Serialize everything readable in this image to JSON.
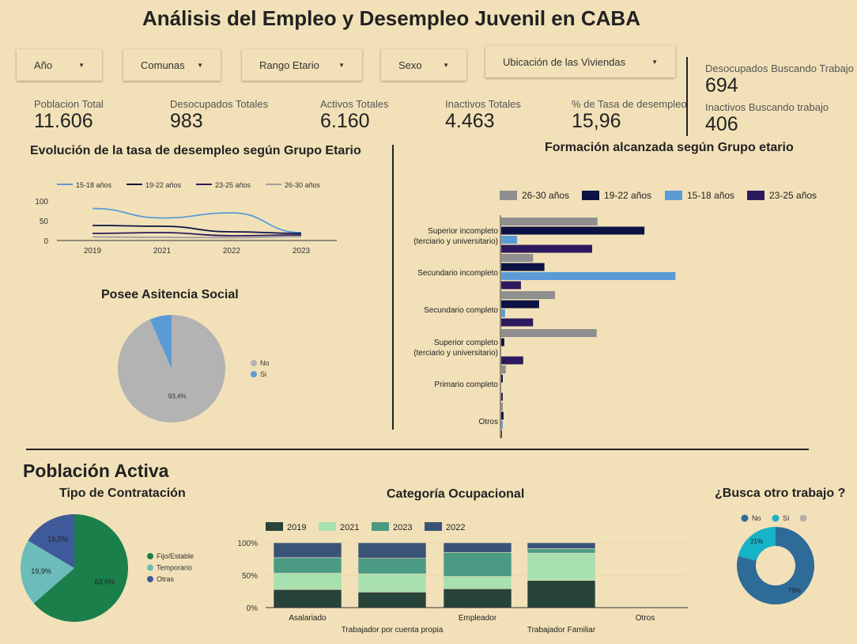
{
  "title": "Análisis del Empleo y Desempleo Juvenil en CABA",
  "filters": [
    {
      "label": "Año"
    },
    {
      "label": "Comunas"
    },
    {
      "label": "Rango Etario"
    },
    {
      "label": "Sexo"
    },
    {
      "label": "Ubicación de las Viviendas"
    }
  ],
  "kpis": {
    "poblacion_total": {
      "label": "Poblacion Total",
      "value": "11.606"
    },
    "desocupados_totales": {
      "label": "Desocupados Totales",
      "value": "983"
    },
    "activos_totales": {
      "label": "Activos Totales",
      "value": "6.160"
    },
    "inactivos_totales": {
      "label": "Inactivos Totales",
      "value": "4.463"
    },
    "tasa_desempleo": {
      "label": "% de Tasa de desempleo",
      "value": "15,96"
    },
    "desocupados_buscando": {
      "label": "Desocupados Buscando Trabajo",
      "value": "694"
    },
    "inactivos_buscando": {
      "label": "Inactivos Buscando trabajo",
      "value": "406"
    }
  },
  "poblacion_activa_heading": "Población Activa",
  "colors": {
    "background": "#f2e1b8",
    "navy": "#0c1244",
    "light_blue": "#5b9bd5",
    "purple": "#2d1a5e",
    "gray": "#8f8f8f"
  },
  "chart_data": [
    {
      "id": "evolucion",
      "type": "line",
      "title": "Evolución de la tasa de desempleo según Grupo Etario",
      "x": [
        "2019",
        "2021",
        "2022",
        "2023"
      ],
      "ylim": [
        0,
        100
      ],
      "yticks": [
        "100",
        "50",
        "0"
      ],
      "legend_position": "top",
      "series": [
        {
          "name": "15-18 años",
          "color": "#5b9bd5",
          "values": [
            81,
            57,
            70,
            20
          ]
        },
        {
          "name": "19-22 años",
          "color": "#0c1244",
          "values": [
            38,
            36,
            22,
            18
          ]
        },
        {
          "name": "23-25 años",
          "color": "#2d1a5e",
          "values": [
            18,
            20,
            12,
            14
          ]
        },
        {
          "name": "26-30 años",
          "color": "#9e9e9e",
          "values": [
            9,
            8,
            7,
            10
          ]
        }
      ]
    },
    {
      "id": "formacion",
      "type": "bar",
      "orientation": "horizontal",
      "title": "Formación alcanzada según Grupo etario",
      "legend_position": "top",
      "categories": [
        [
          "Superior incompleto",
          "(terciario y universitario)"
        ],
        [
          "Secundario incompleto"
        ],
        [
          "Secundario completo"
        ],
        [
          "Superior completo",
          "(terciario y universitario)"
        ],
        [
          "Primario completo"
        ],
        [
          "Otros"
        ]
      ],
      "series": [
        {
          "name": "26-30 años",
          "color": "#8f8f8f",
          "values": [
            127,
            42,
            71,
            126,
            6,
            2
          ]
        },
        {
          "name": "19-22 años",
          "color": "#0c1244",
          "values": [
            189,
            57,
            50,
            4,
            2,
            3
          ]
        },
        {
          "name": "15-18 años",
          "color": "#5b9bd5",
          "values": [
            21,
            230,
            5,
            0,
            0,
            2
          ]
        },
        {
          "name": "23-25 años",
          "color": "#2d1a5e",
          "values": [
            120,
            26,
            42,
            29,
            2,
            1
          ]
        }
      ],
      "xlim": [
        0,
        240
      ]
    },
    {
      "id": "asistencia",
      "type": "pie",
      "title": "Posee Asitencia Social",
      "legend_position": "right",
      "slices": [
        {
          "name": "No",
          "value": 93.4,
          "label": "93,4%",
          "color": "#b3b3b3"
        },
        {
          "name": "Si",
          "value": 6.6,
          "label": "",
          "color": "#5b9bd5"
        }
      ]
    },
    {
      "id": "contratacion",
      "type": "pie",
      "title": "Tipo de Contratación",
      "legend_position": "right",
      "slices": [
        {
          "name": "Fijo/Estable",
          "value": 63.6,
          "label": "63,6%",
          "color": "#1a7f4b"
        },
        {
          "name": "Temporario",
          "value": 19.9,
          "label": "19,9%",
          "color": "#6cbcbc"
        },
        {
          "name": "Otras",
          "value": 16.5,
          "label": "16,5%",
          "color": "#3f5a9a"
        }
      ]
    },
    {
      "id": "categoria",
      "type": "bar",
      "stacked": true,
      "normalized": true,
      "title": "Categoría Ocupacional",
      "legend_position": "top",
      "categories": [
        "Asalariado",
        "Trabajador por cuenta propia",
        "Empleador",
        "Trabajador Familiar",
        "Otros"
      ],
      "yticks": [
        "100%",
        "50%",
        "0%"
      ],
      "ylim": [
        0,
        100
      ],
      "series": [
        {
          "name": "2019",
          "color": "#28433a",
          "values": [
            28,
            24,
            29,
            42,
            0.5
          ]
        },
        {
          "name": "2021",
          "color": "#a8e0b0",
          "values": [
            25,
            28,
            19,
            42,
            0.5
          ]
        },
        {
          "name": "2023",
          "color": "#4a9a84",
          "values": [
            24,
            24,
            37,
            7,
            0
          ]
        },
        {
          "name": "2022",
          "color": "#3a5478",
          "values": [
            23,
            24,
            15,
            9,
            0
          ]
        }
      ]
    },
    {
      "id": "busca_otro",
      "type": "pie",
      "donut": true,
      "title": "¿Busca otro trabajo ?",
      "legend_position": "top",
      "slices": [
        {
          "name": "No",
          "value": 79,
          "label": "79%",
          "color": "#2e6b99"
        },
        {
          "name": "Sí",
          "value": 21,
          "label": "21%",
          "color": "#17b3c7"
        },
        {
          "name": "",
          "value": 0,
          "label": "",
          "color": "#b8aca6"
        }
      ]
    }
  ]
}
